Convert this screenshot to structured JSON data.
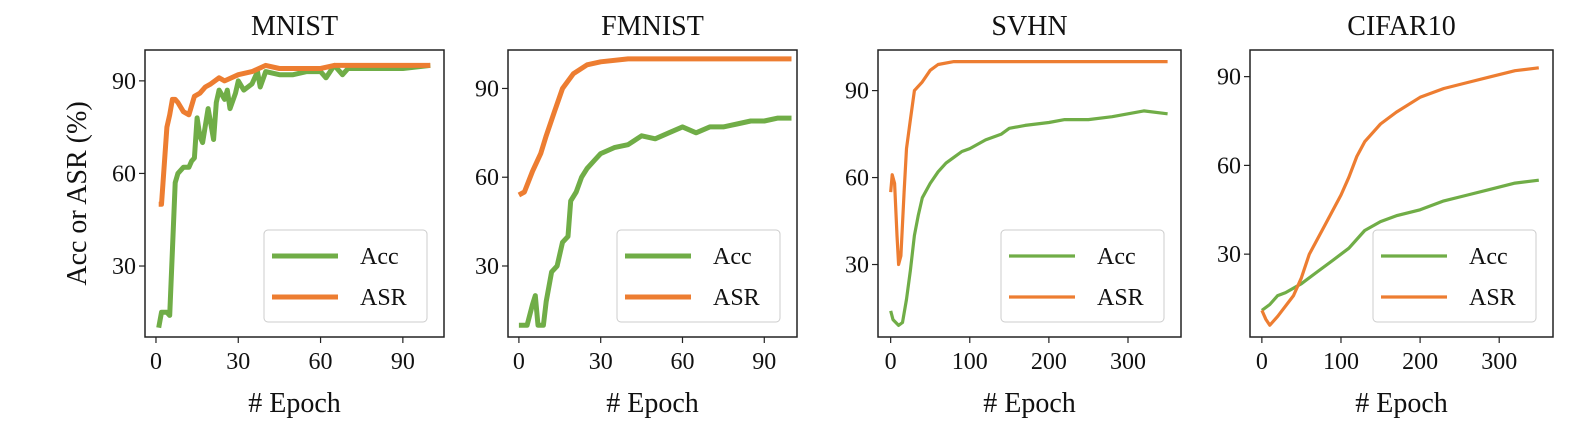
{
  "chart_data": [
    {
      "type": "line",
      "title": "MNIST",
      "xlabel": "# Epoch",
      "ylabel": "Acc or ASR (%)",
      "xlim": [
        -4,
        105
      ],
      "ylim": [
        7,
        100
      ],
      "xticks": [
        0,
        30,
        60,
        90
      ],
      "yticks": [
        30,
        60,
        90
      ],
      "grid": false,
      "legend": "bottom-right",
      "line_width": "thick",
      "series": [
        {
          "name": "Acc",
          "color": "#70ad47",
          "x": [
            1,
            2,
            4,
            5,
            6,
            7,
            8,
            10,
            12,
            13,
            14,
            15,
            16,
            17,
            19,
            21,
            22,
            23,
            25,
            26,
            27,
            29,
            30,
            32,
            35,
            37,
            38,
            40,
            45,
            50,
            55,
            60,
            62,
            65,
            68,
            70,
            80,
            90,
            100
          ],
          "y": [
            10,
            15,
            15,
            14,
            35,
            57,
            60,
            62,
            62,
            64,
            65,
            78,
            72,
            70,
            81,
            71,
            83,
            87,
            84,
            87,
            81,
            86,
            90,
            87,
            89,
            93,
            88,
            93,
            92,
            92,
            93,
            93,
            91,
            95,
            92,
            94,
            94,
            94,
            95
          ]
        },
        {
          "name": "ASR",
          "color": "#ed7d31",
          "x": [
            1,
            2,
            4,
            5,
            6,
            7,
            8,
            10,
            12,
            14,
            16,
            18,
            20,
            23,
            25,
            30,
            35,
            40,
            45,
            50,
            60,
            65,
            70,
            80,
            90,
            100
          ],
          "y": [
            50,
            50,
            75,
            79,
            84,
            84,
            83,
            80,
            79,
            85,
            86,
            88,
            89,
            91,
            90,
            92,
            93,
            95,
            94,
            94,
            94,
            95,
            95,
            95,
            95,
            95
          ]
        }
      ]
    },
    {
      "type": "line",
      "title": "FMNIST",
      "xlabel": "# Epoch",
      "ylabel": "",
      "xlim": [
        -4,
        102
      ],
      "ylim": [
        6,
        103
      ],
      "xticks": [
        0,
        30,
        60,
        90
      ],
      "yticks": [
        30,
        60,
        90
      ],
      "grid": false,
      "legend": "bottom-right",
      "line_width": "thick",
      "series": [
        {
          "name": "Acc",
          "color": "#70ad47",
          "x": [
            0,
            3,
            5,
            6,
            7,
            9,
            10,
            12,
            14,
            16,
            18,
            19,
            21,
            23,
            25,
            28,
            30,
            35,
            40,
            45,
            50,
            55,
            60,
            65,
            70,
            75,
            80,
            85,
            90,
            95,
            100
          ],
          "y": [
            10,
            10,
            17,
            20,
            10,
            10,
            18,
            28,
            30,
            38,
            40,
            52,
            55,
            60,
            63,
            66,
            68,
            70,
            71,
            74,
            73,
            75,
            77,
            75,
            77,
            77,
            78,
            79,
            79,
            80,
            80
          ]
        },
        {
          "name": "ASR",
          "color": "#ed7d31",
          "x": [
            0,
            2,
            5,
            8,
            10,
            13,
            16,
            20,
            25,
            30,
            40,
            50,
            100
          ],
          "y": [
            54,
            55,
            62,
            68,
            74,
            82,
            90,
            95,
            98,
            99,
            100,
            100,
            100
          ]
        }
      ]
    },
    {
      "type": "line",
      "title": "SVHN",
      "xlabel": "# Epoch",
      "ylabel": "",
      "xlim": [
        -16,
        367
      ],
      "ylim": [
        5,
        104
      ],
      "xticks": [
        0,
        100,
        200,
        300
      ],
      "yticks": [
        30,
        60,
        90
      ],
      "grid": false,
      "legend": "bottom-right",
      "line_width": "thin",
      "series": [
        {
          "name": "Acc",
          "color": "#70ad47",
          "x": [
            0,
            3,
            10,
            15,
            20,
            25,
            30,
            35,
            40,
            50,
            60,
            70,
            80,
            90,
            100,
            120,
            140,
            150,
            170,
            200,
            220,
            250,
            280,
            300,
            320,
            350
          ],
          "y": [
            14,
            11,
            9,
            10,
            18,
            28,
            40,
            47,
            53,
            58,
            62,
            65,
            67,
            69,
            70,
            73,
            75,
            77,
            78,
            79,
            80,
            80,
            81,
            82,
            83,
            82
          ]
        },
        {
          "name": "ASR",
          "color": "#ed7d31",
          "x": [
            0,
            2,
            5,
            8,
            10,
            13,
            17,
            20,
            25,
            30,
            40,
            50,
            60,
            80,
            100,
            350
          ],
          "y": [
            55,
            61,
            58,
            40,
            30,
            33,
            55,
            70,
            80,
            90,
            93,
            97,
            99,
            100,
            100,
            100
          ]
        }
      ]
    },
    {
      "type": "line",
      "title": "CIFAR10",
      "xlabel": "# Epoch",
      "ylabel": "",
      "xlim": [
        -15,
        368
      ],
      "ylim": [
        2,
        99
      ],
      "xticks": [
        0,
        100,
        200,
        300
      ],
      "yticks": [
        30,
        60,
        90
      ],
      "grid": false,
      "legend": "bottom-right",
      "line_width": "thin",
      "series": [
        {
          "name": "Acc",
          "color": "#70ad47",
          "x": [
            0,
            10,
            20,
            30,
            50,
            70,
            90,
            110,
            130,
            150,
            170,
            200,
            230,
            260,
            290,
            320,
            350
          ],
          "y": [
            11,
            13,
            16,
            17,
            20,
            24,
            28,
            32,
            38,
            41,
            43,
            45,
            48,
            50,
            52,
            54,
            55
          ]
        },
        {
          "name": "ASR",
          "color": "#ed7d31",
          "x": [
            0,
            5,
            10,
            20,
            40,
            50,
            60,
            80,
            100,
            110,
            120,
            130,
            150,
            170,
            200,
            230,
            260,
            290,
            320,
            350
          ],
          "y": [
            11,
            8,
            6,
            9,
            16,
            22,
            30,
            40,
            50,
            56,
            63,
            68,
            74,
            78,
            83,
            86,
            88,
            90,
            92,
            93
          ]
        }
      ]
    }
  ]
}
